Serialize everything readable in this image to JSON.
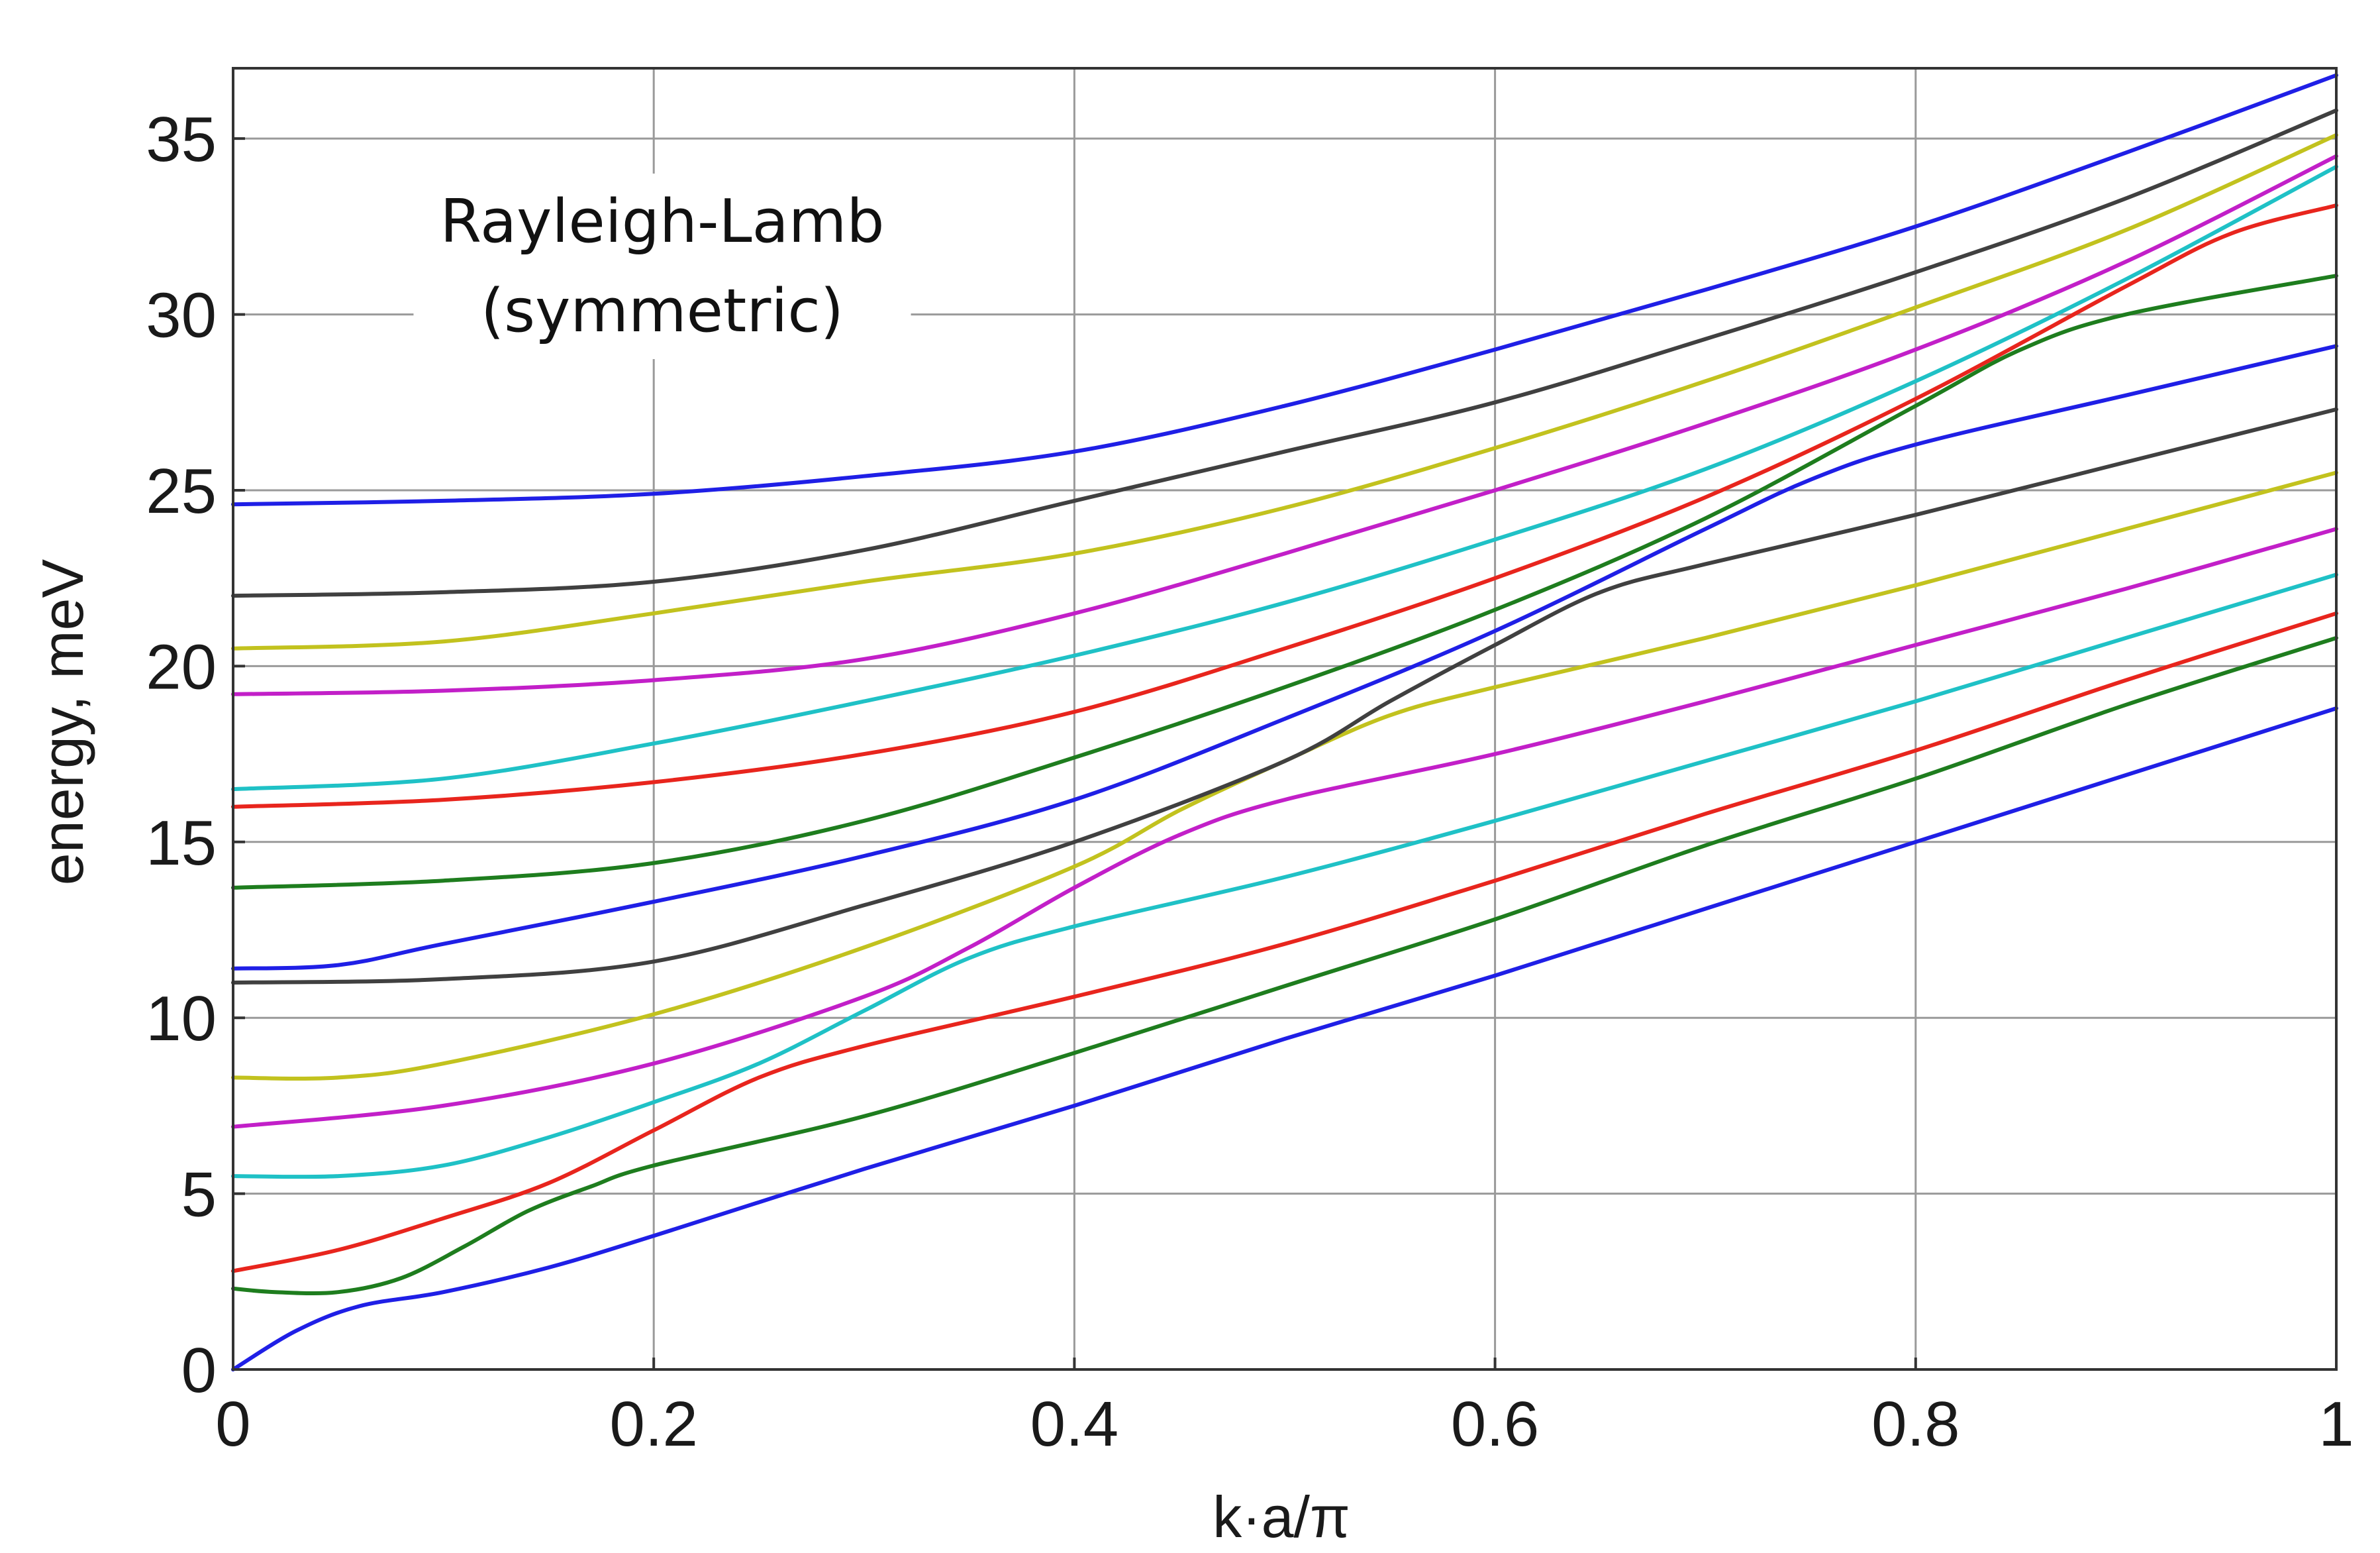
{
  "chart_data": {
    "type": "line",
    "title": "",
    "annotation": [
      "Rayleigh-Lamb",
      "(symmetric)"
    ],
    "xlabel": "k·a/π",
    "ylabel": "energy, meV",
    "xlim": [
      0,
      1
    ],
    "ylim": [
      0,
      37
    ],
    "xticks": [
      0,
      0.2,
      0.4,
      0.6,
      0.8,
      1
    ],
    "xtick_labels": [
      "0",
      "0.2",
      "0.4",
      "0.6",
      "0.8",
      "1"
    ],
    "yticks": [
      0,
      5,
      10,
      15,
      20,
      25,
      30,
      35
    ],
    "ytick_labels": [
      "0",
      "5",
      "10",
      "15",
      "20",
      "25",
      "30",
      "35"
    ],
    "grid": true,
    "colors": {
      "blue": "#1f1fe6",
      "green": "#1e7d1e",
      "red": "#e8251d",
      "cyan": "#1fc1c6",
      "magenta": "#c21fc8",
      "yellow": "#c2c21e",
      "gray": "#404040"
    },
    "series": [
      {
        "color": "#1f1fe6",
        "x": [
          0,
          0.03,
          0.06,
          0.1,
          0.15,
          0.2,
          0.3,
          0.4,
          0.5,
          0.6,
          0.7,
          0.8,
          0.9,
          1.0
        ],
        "y": [
          0,
          1.1,
          1.8,
          2.2,
          2.9,
          3.8,
          5.7,
          7.5,
          9.4,
          11.2,
          13.1,
          15.0,
          16.9,
          18.8
        ]
      },
      {
        "color": "#1e7d1e",
        "x": [
          0,
          0.02,
          0.05,
          0.08,
          0.11,
          0.14,
          0.17,
          0.2,
          0.3,
          0.4,
          0.5,
          0.6,
          0.7,
          0.8,
          0.9,
          1.0
        ],
        "y": [
          2.3,
          2.2,
          2.2,
          2.6,
          3.5,
          4.5,
          5.2,
          5.8,
          7.2,
          9.0,
          10.9,
          12.8,
          14.9,
          16.8,
          18.9,
          20.8
        ]
      },
      {
        "color": "#e8251d",
        "x": [
          0,
          0.05,
          0.1,
          0.15,
          0.2,
          0.25,
          0.3,
          0.4,
          0.5,
          0.6,
          0.7,
          0.8,
          0.9,
          1.0
        ],
        "y": [
          2.8,
          3.4,
          4.3,
          5.3,
          6.8,
          8.3,
          9.2,
          10.6,
          12.1,
          13.9,
          15.8,
          17.6,
          19.6,
          21.5
        ]
      },
      {
        "color": "#1fc1c6",
        "x": [
          0,
          0.05,
          0.1,
          0.15,
          0.2,
          0.25,
          0.3,
          0.35,
          0.4,
          0.5,
          0.6,
          0.7,
          0.8,
          0.9,
          1.0
        ],
        "y": [
          5.5,
          5.5,
          5.8,
          6.6,
          7.6,
          8.7,
          10.2,
          11.7,
          12.6,
          14.0,
          15.6,
          17.3,
          19.0,
          20.8,
          22.6
        ]
      },
      {
        "color": "#c21fc8",
        "x": [
          0,
          0.1,
          0.2,
          0.3,
          0.35,
          0.4,
          0.45,
          0.5,
          0.6,
          0.7,
          0.8,
          0.9,
          1.0
        ],
        "y": [
          6.9,
          7.5,
          8.7,
          10.6,
          12.0,
          13.7,
          15.2,
          16.2,
          17.5,
          19.0,
          20.6,
          22.2,
          23.9
        ]
      },
      {
        "color": "#c2c21e",
        "x": [
          0,
          0.05,
          0.1,
          0.2,
          0.3,
          0.4,
          0.45,
          0.5,
          0.55,
          0.6,
          0.7,
          0.8,
          0.9,
          1.0
        ],
        "y": [
          8.3,
          8.3,
          8.7,
          10.1,
          12.0,
          14.3,
          15.9,
          17.3,
          18.6,
          19.4,
          20.8,
          22.3,
          23.9,
          25.5
        ]
      },
      {
        "color": "#404040",
        "x": [
          0,
          0.1,
          0.2,
          0.3,
          0.4,
          0.5,
          0.55,
          0.6,
          0.65,
          0.7,
          0.8,
          0.9,
          1.0
        ],
        "y": [
          11.0,
          11.1,
          11.6,
          13.2,
          15.0,
          17.3,
          19.0,
          20.6,
          22.1,
          22.9,
          24.3,
          25.8,
          27.3
        ]
      },
      {
        "color": "#1f1fe6",
        "x": [
          0,
          0.05,
          0.1,
          0.2,
          0.3,
          0.4,
          0.5,
          0.6,
          0.7,
          0.75,
          0.8,
          0.9,
          1.0
        ],
        "y": [
          11.4,
          11.5,
          12.1,
          13.3,
          14.6,
          16.2,
          18.5,
          21.0,
          23.9,
          25.3,
          26.3,
          27.7,
          29.1
        ]
      },
      {
        "color": "#1e7d1e",
        "x": [
          0,
          0.1,
          0.2,
          0.3,
          0.4,
          0.5,
          0.6,
          0.7,
          0.8,
          0.85,
          0.9,
          1.0
        ],
        "y": [
          13.7,
          13.9,
          14.4,
          15.6,
          17.4,
          19.4,
          21.6,
          24.2,
          27.4,
          29.0,
          30.0,
          31.1
        ]
      },
      {
        "color": "#e8251d",
        "x": [
          0,
          0.1,
          0.2,
          0.3,
          0.4,
          0.5,
          0.6,
          0.7,
          0.8,
          0.9,
          0.95,
          1.0
        ],
        "y": [
          16.0,
          16.2,
          16.7,
          17.5,
          18.7,
          20.5,
          22.5,
          24.8,
          27.6,
          30.8,
          32.3,
          33.1
        ]
      },
      {
        "color": "#1fc1c6",
        "x": [
          0,
          0.1,
          0.2,
          0.3,
          0.4,
          0.5,
          0.6,
          0.7,
          0.8,
          0.9,
          1.0
        ],
        "y": [
          16.5,
          16.8,
          17.8,
          19.0,
          20.3,
          21.8,
          23.6,
          25.6,
          28.1,
          31.0,
          34.2
        ]
      },
      {
        "color": "#c21fc8",
        "x": [
          0,
          0.1,
          0.2,
          0.3,
          0.4,
          0.5,
          0.6,
          0.7,
          0.8,
          0.9,
          1.0
        ],
        "y": [
          19.2,
          19.3,
          19.6,
          20.2,
          21.5,
          23.2,
          25.0,
          26.9,
          29.0,
          31.5,
          34.5
        ]
      },
      {
        "color": "#c2c21e",
        "x": [
          0,
          0.1,
          0.2,
          0.3,
          0.4,
          0.5,
          0.6,
          0.7,
          0.8,
          0.9,
          1.0
        ],
        "y": [
          20.5,
          20.7,
          21.5,
          22.4,
          23.2,
          24.5,
          26.2,
          28.1,
          30.2,
          32.4,
          35.1
        ]
      },
      {
        "color": "#404040",
        "x": [
          0,
          0.1,
          0.2,
          0.3,
          0.4,
          0.5,
          0.6,
          0.7,
          0.8,
          0.9,
          1.0
        ],
        "y": [
          22.0,
          22.1,
          22.4,
          23.3,
          24.7,
          26.1,
          27.5,
          29.3,
          31.2,
          33.3,
          35.8
        ]
      },
      {
        "color": "#1f1fe6",
        "x": [
          0,
          0.1,
          0.2,
          0.3,
          0.4,
          0.5,
          0.6,
          0.7,
          0.8,
          0.9,
          1.0
        ],
        "y": [
          24.6,
          24.7,
          24.9,
          25.4,
          26.1,
          27.4,
          29.0,
          30.7,
          32.5,
          34.6,
          36.8
        ]
      }
    ]
  }
}
